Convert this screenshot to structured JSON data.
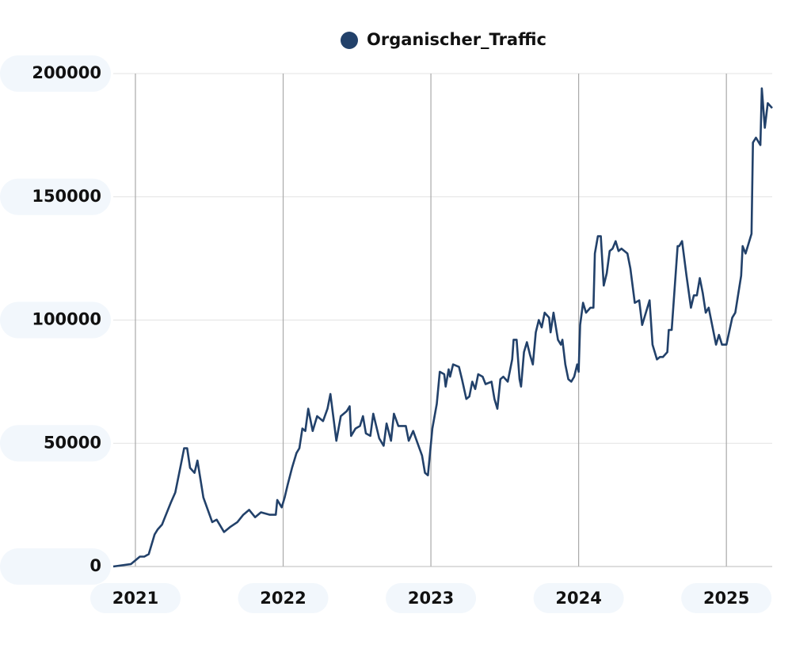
{
  "chart_data": {
    "type": "line",
    "series": [
      {
        "name": "Organischer_Traffic",
        "color": "#22416a",
        "x": [
          2020.85,
          2020.97,
          2021.03,
          2021.06,
          2021.09,
          2021.13,
          2021.15,
          2021.18,
          2021.2,
          2021.24,
          2021.27,
          2021.31,
          2021.33,
          2021.35,
          2021.37,
          2021.4,
          2021.42,
          2021.46,
          2021.49,
          2021.52,
          2021.55,
          2021.6,
          2021.64,
          2021.69,
          2021.73,
          2021.77,
          2021.81,
          2021.85,
          2021.91,
          2021.95,
          2021.96,
          2021.99,
          2022.01,
          2022.03,
          2022.06,
          2022.09,
          2022.11,
          2022.13,
          2022.15,
          2022.17,
          2022.2,
          2022.23,
          2022.27,
          2022.3,
          2022.32,
          2022.36,
          2022.39,
          2022.43,
          2022.45,
          2022.46,
          2022.49,
          2022.52,
          2022.54,
          2022.56,
          2022.59,
          2022.61,
          2022.65,
          2022.68,
          2022.7,
          2022.73,
          2022.75,
          2022.78,
          2022.83,
          2022.85,
          2022.88,
          2022.91,
          2022.94,
          2022.96,
          2022.98,
          2023.01,
          2023.04,
          2023.06,
          2023.09,
          2023.1,
          2023.12,
          2023.13,
          2023.15,
          2023.19,
          2023.21,
          2023.24,
          2023.26,
          2023.28,
          2023.3,
          2023.32,
          2023.35,
          2023.37,
          2023.41,
          2023.43,
          2023.45,
          2023.47,
          2023.49,
          2023.52,
          2023.55,
          2023.56,
          2023.58,
          2023.6,
          2023.61,
          2023.63,
          2023.65,
          2023.67,
          2023.69,
          2023.71,
          2023.73,
          2023.75,
          2023.77,
          2023.8,
          2023.81,
          2023.83,
          2023.86,
          2023.88,
          2023.89,
          2023.91,
          2023.93,
          2023.95,
          2023.97,
          2023.99,
          2024.0,
          2024.01,
          2024.03,
          2024.05,
          2024.08,
          2024.1,
          2024.11,
          2024.13,
          2024.15,
          2024.17,
          2024.19,
          2024.21,
          2024.23,
          2024.25,
          2024.27,
          2024.29,
          2024.33,
          2024.35,
          2024.38,
          2024.41,
          2024.43,
          2024.48,
          2024.5,
          2024.53,
          2024.55,
          2024.57,
          2024.6,
          2024.61,
          2024.63,
          2024.67,
          2024.68,
          2024.7,
          2024.73,
          2024.76,
          2024.78,
          2024.8,
          2024.82,
          2024.84,
          2024.86,
          2024.88,
          2024.93,
          2024.95,
          2024.97,
          2025.0,
          2025.04,
          2025.06,
          2025.1,
          2025.11,
          2025.13,
          2025.17,
          2025.18,
          2025.2,
          2025.23,
          2025.24,
          2025.26,
          2025.28,
          2025.31
        ],
        "values": [
          0,
          1000,
          4000,
          4000,
          5000,
          13000,
          15000,
          17000,
          20000,
          26000,
          30000,
          42000,
          48000,
          48000,
          40000,
          38000,
          43000,
          28000,
          23000,
          18000,
          19000,
          14000,
          16000,
          18000,
          21000,
          23000,
          20000,
          22000,
          21000,
          21000,
          27000,
          24000,
          28000,
          33000,
          40000,
          46000,
          48000,
          56000,
          55000,
          64000,
          55000,
          61000,
          59000,
          64000,
          70000,
          51000,
          61000,
          63000,
          65000,
          53000,
          56000,
          57000,
          61000,
          54000,
          53000,
          62000,
          52000,
          49000,
          58000,
          51000,
          62000,
          57000,
          57000,
          51000,
          55000,
          50000,
          45000,
          38000,
          37000,
          56000,
          66000,
          79000,
          78000,
          73000,
          80000,
          77000,
          82000,
          81000,
          76000,
          68000,
          69000,
          75000,
          72000,
          78000,
          77000,
          74000,
          75000,
          68000,
          64000,
          76000,
          77000,
          75000,
          84000,
          92000,
          92000,
          76000,
          73000,
          87000,
          91000,
          86000,
          82000,
          95000,
          100000,
          97000,
          103000,
          101000,
          95000,
          103000,
          92000,
          90000,
          92000,
          82000,
          76000,
          75000,
          77000,
          82000,
          79000,
          98000,
          107000,
          103000,
          105000,
          105000,
          127000,
          134000,
          134000,
          114000,
          119000,
          128000,
          129000,
          132000,
          128000,
          129000,
          127000,
          121000,
          107000,
          108000,
          98000,
          108000,
          90000,
          84000,
          85000,
          85000,
          87000,
          96000,
          96000,
          130000,
          130000,
          132000,
          118000,
          105000,
          110000,
          110000,
          117000,
          111000,
          103000,
          105000,
          90000,
          94000,
          90000,
          90000,
          101000,
          103000,
          118000,
          130000,
          127000,
          135000,
          172000,
          174000,
          171000,
          194000,
          178000,
          188000,
          186000
        ]
      }
    ],
    "xlim": [
      2020.85,
      2025.31
    ],
    "xticks": [
      2021,
      2022,
      2023,
      2024,
      2025
    ],
    "ylim": [
      0,
      200000
    ],
    "yticks": [
      0,
      50000,
      100000,
      150000,
      200000
    ],
    "grid": true
  }
}
